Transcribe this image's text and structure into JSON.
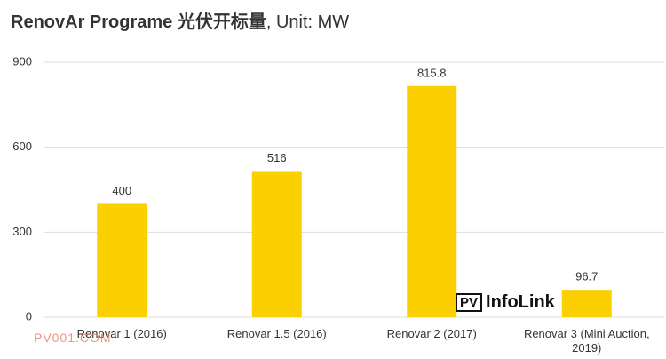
{
  "chart_data": {
    "type": "bar",
    "title": "RenovAr Programe 光伏开标量",
    "subtitle": ", Unit: MW",
    "categories": [
      "Renovar 1 (2016)",
      "Renovar 1.5 (2016)",
      "Renovar 2 (2017)",
      "Renovar 3 (Mini Auction, 2019)"
    ],
    "values": [
      400,
      516,
      815.8,
      96.7
    ],
    "color": "#fbcf00",
    "ylim": [
      0,
      900
    ],
    "yticks": [
      0,
      300,
      600,
      900
    ],
    "grid": true,
    "watermark": "PV001.COM",
    "logo": {
      "mark": "PV",
      "text": "InfoLink"
    }
  }
}
